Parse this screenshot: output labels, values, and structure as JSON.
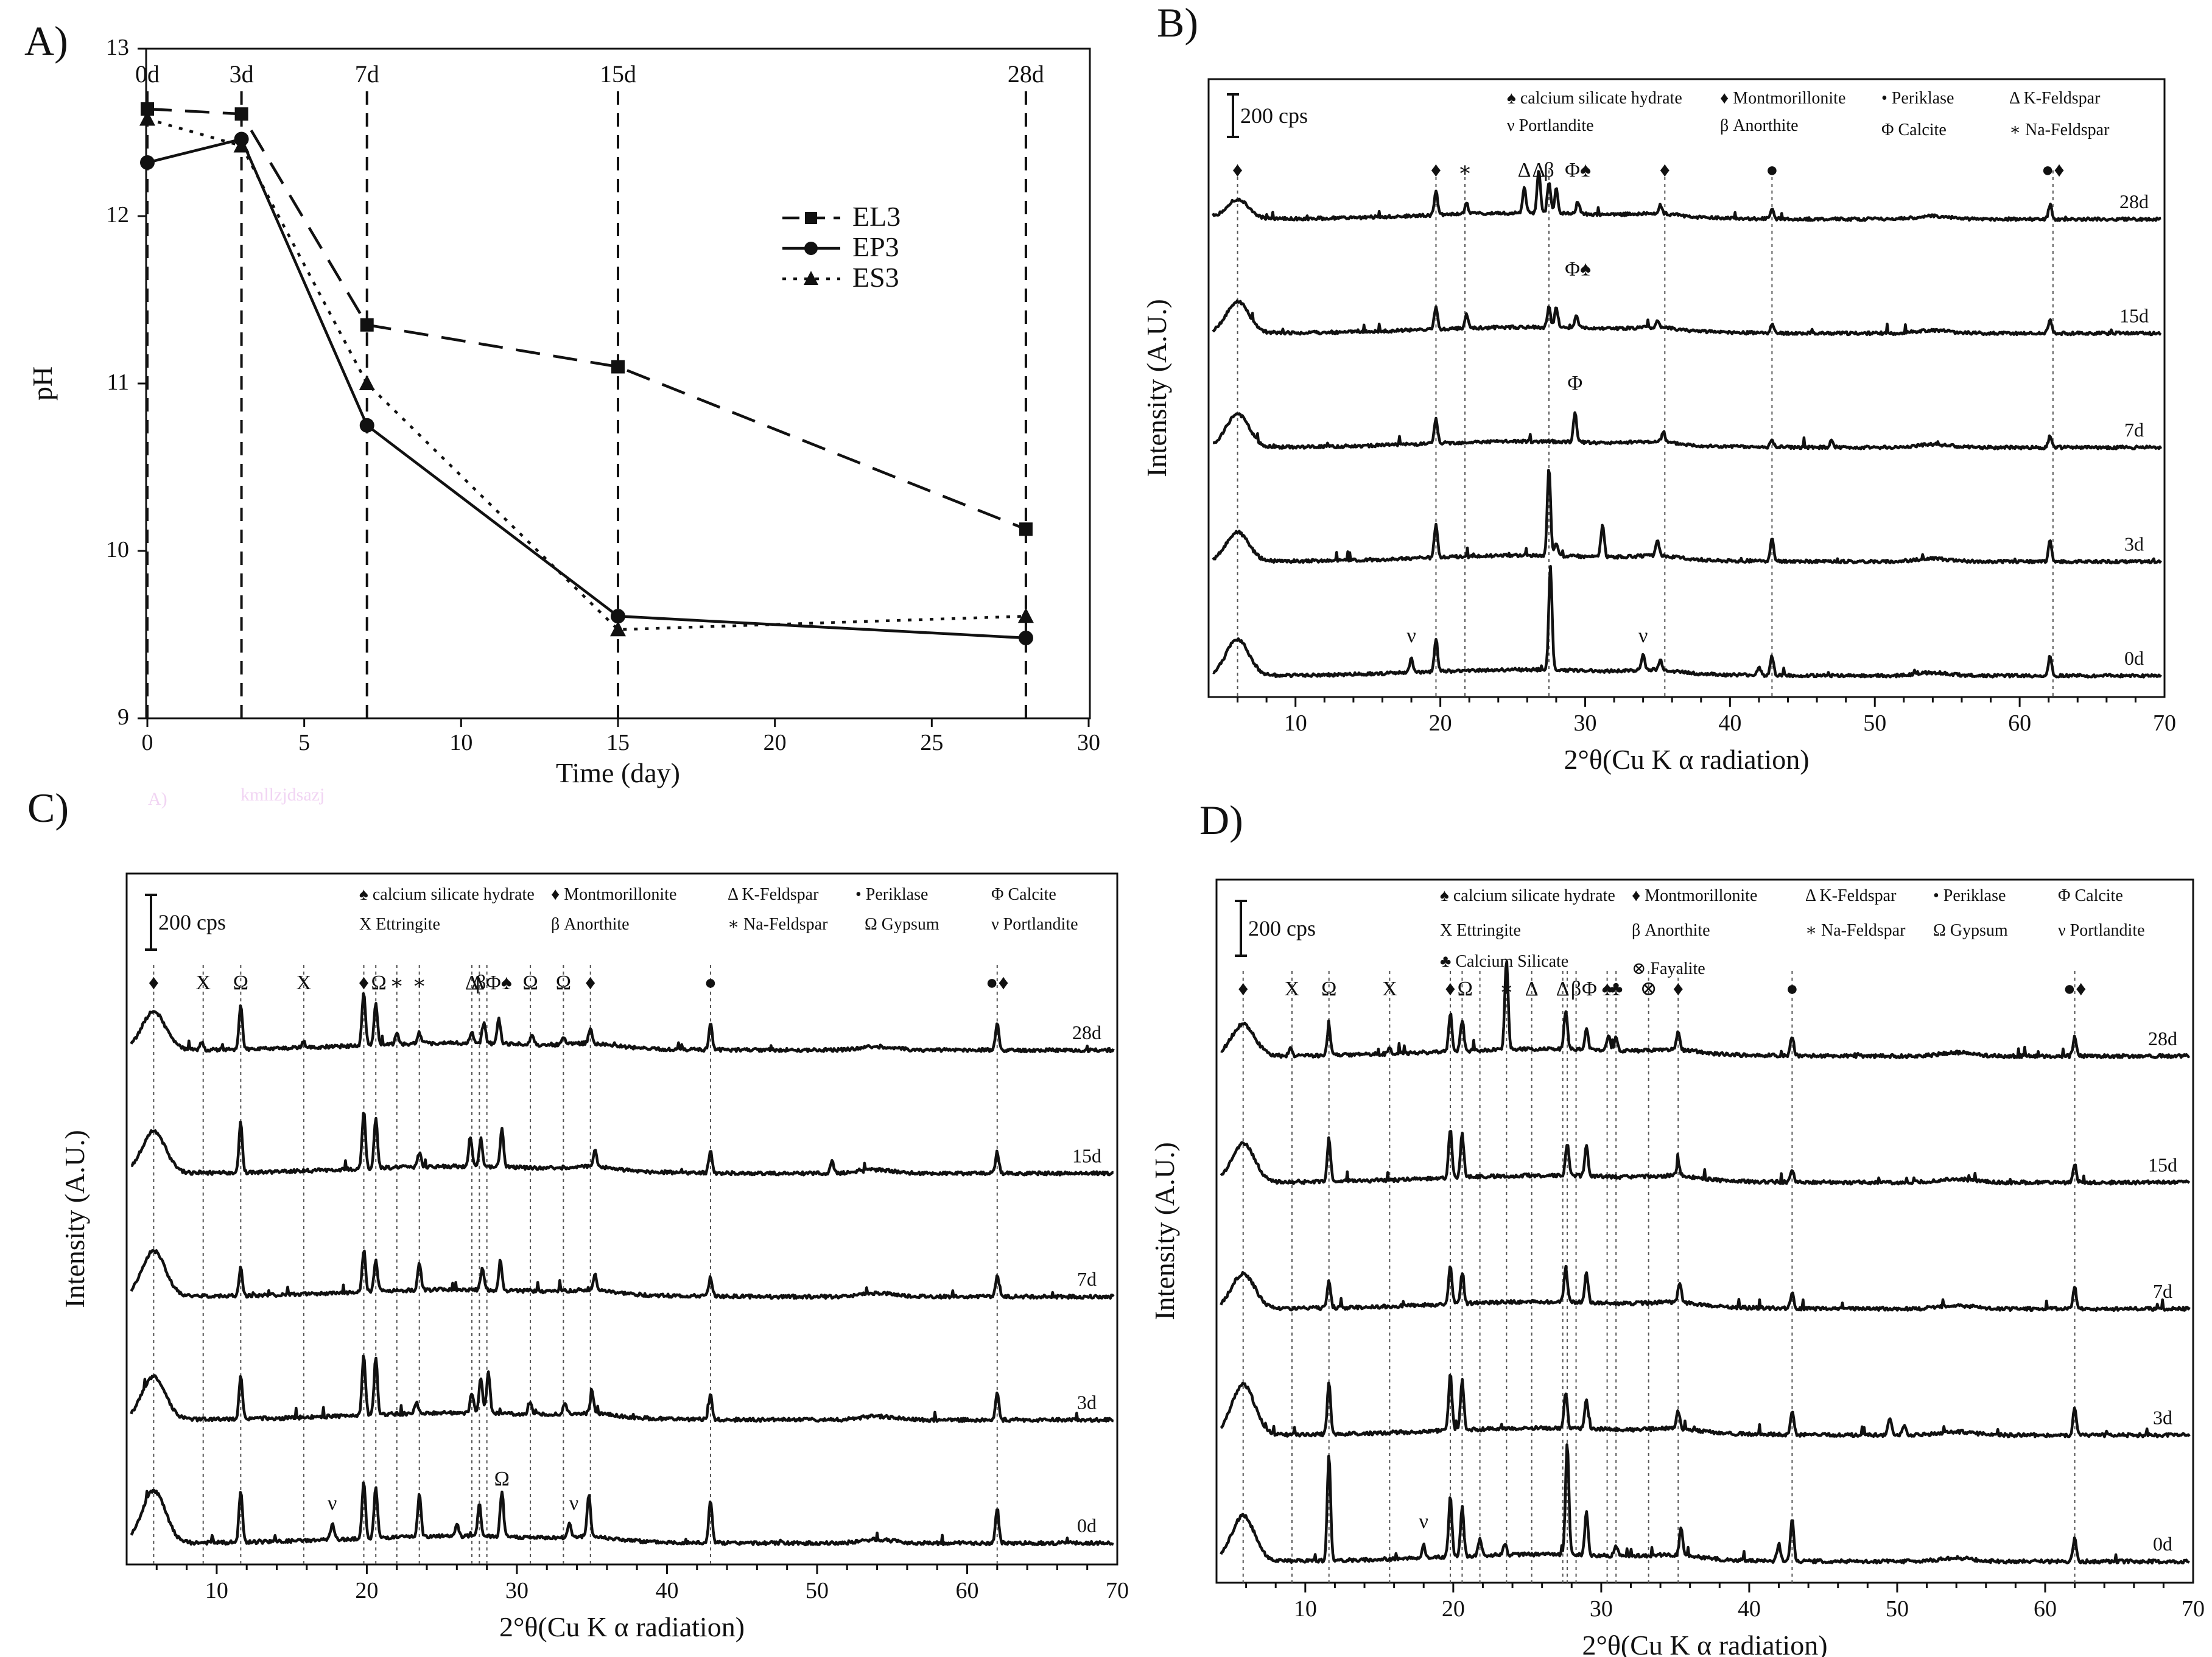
{
  "chart_data": [
    {
      "panel": "A)",
      "type": "line",
      "xlabel": "Time (day)",
      "ylabel": "pH",
      "xlim": [
        0,
        30
      ],
      "ylim": [
        9,
        13
      ],
      "xticks": [
        0,
        5,
        10,
        15,
        20,
        25,
        30
      ],
      "yticks": [
        9,
        10,
        11,
        12,
        13
      ],
      "day_markers": [
        {
          "x": 0,
          "label": "0d"
        },
        {
          "x": 3,
          "label": "3d"
        },
        {
          "x": 7,
          "label": "7d"
        },
        {
          "x": 15,
          "label": "15d"
        },
        {
          "x": 28,
          "label": "28d"
        }
      ],
      "x": [
        0,
        3,
        7,
        15,
        28
      ],
      "series": [
        {
          "name": "EL3",
          "marker": "square",
          "style": "dashed",
          "values": [
            12.64,
            12.61,
            11.35,
            11.1,
            10.13
          ]
        },
        {
          "name": "EP3",
          "marker": "circle",
          "style": "solid",
          "values": [
            12.32,
            12.46,
            10.75,
            9.61,
            9.48
          ]
        },
        {
          "name": "ES3",
          "marker": "triangle",
          "style": "dotted",
          "values": [
            12.58,
            12.42,
            11.0,
            9.53,
            9.61
          ]
        }
      ],
      "watermark_text": [
        "A)",
        "kmllzjdsazj"
      ]
    },
    {
      "panel": "B)",
      "type": "xrd_patterns",
      "xlabel": "2°θ(Cu K α radiation)",
      "ylabel": "Intensity (A.U.)",
      "xlim": [
        4,
        70
      ],
      "xticks": [
        10,
        20,
        30,
        40,
        50,
        60,
        70
      ],
      "scale_bar": "200 cps",
      "legend": [
        "♠ calcium silicate hydrate",
        "♦ Montmorillonite",
        "• Periklase",
        "Δ K-Feldspar",
        "ν Portlandite",
        "β Anorthite",
        "Φ Calcite",
        "∗ Na-Feldspar"
      ],
      "patterns": [
        {
          "label": "28d",
          "peaks": [
            [
              6.0,
              32
            ],
            [
              19.7,
              40
            ],
            [
              21.8,
              18
            ],
            [
              25.8,
              42
            ],
            [
              26.8,
              70
            ],
            [
              27.5,
              52
            ],
            [
              28.0,
              40
            ],
            [
              29.5,
              20
            ],
            [
              35.2,
              14
            ],
            [
              42.9,
              18
            ],
            [
              62.1,
              24
            ]
          ]
        },
        {
          "label": "15d",
          "peaks": [
            [
              6.0,
              52
            ],
            [
              19.7,
              38
            ],
            [
              21.8,
              22
            ],
            [
              27.5,
              34
            ],
            [
              28.0,
              34
            ],
            [
              29.4,
              20
            ],
            [
              35.0,
              12
            ],
            [
              42.9,
              14
            ],
            [
              62.1,
              22
            ]
          ]
        },
        {
          "label": "7d",
          "peaks": [
            [
              6.0,
              55
            ],
            [
              19.7,
              40
            ],
            [
              29.3,
              48
            ],
            [
              35.4,
              18
            ],
            [
              42.9,
              10
            ],
            [
              47.0,
              10
            ],
            [
              62.1,
              20
            ]
          ]
        },
        {
          "label": "3d",
          "peaks": [
            [
              6.0,
              48
            ],
            [
              19.7,
              55
            ],
            [
              27.5,
              145
            ],
            [
              28.0,
              22
            ],
            [
              31.2,
              52
            ],
            [
              35.0,
              26
            ],
            [
              42.9,
              36
            ],
            [
              62.1,
              35
            ]
          ]
        },
        {
          "label": "0d",
          "peaks": [
            [
              6.0,
              60
            ],
            [
              18.0,
              22
            ],
            [
              19.7,
              55
            ],
            [
              27.6,
              170
            ],
            [
              34.0,
              25
            ],
            [
              35.2,
              16
            ],
            [
              42.0,
              14
            ],
            [
              42.9,
              32
            ],
            [
              62.1,
              33
            ]
          ]
        }
      ],
      "ref_lines": [
        6.0,
        19.7,
        21.7,
        27.5,
        35.5,
        42.9,
        62.3
      ],
      "annotations": [
        {
          "x": 6.0,
          "symbol": "♦"
        },
        {
          "x": 19.7,
          "symbol": "♦"
        },
        {
          "x": 21.7,
          "symbol": "∗"
        },
        {
          "x": 25.8,
          "symbol": "Δ"
        },
        {
          "x": 26.8,
          "symbol": "Δ"
        },
        {
          "x": 27.5,
          "symbol": "β"
        },
        {
          "x": 29.5,
          "symbol": "Φ♠"
        },
        {
          "x": 35.5,
          "symbol": "♦"
        },
        {
          "x": 42.9,
          "symbol": "●"
        },
        {
          "x": 62.3,
          "symbol": "●♦"
        },
        {
          "x": 29.5,
          "symbol": "Φ♠",
          "pattern": "15d"
        },
        {
          "x": 29.3,
          "symbol": "Φ",
          "pattern": "7d"
        },
        {
          "x": 18.0,
          "symbol": "ν",
          "pattern": "0d"
        },
        {
          "x": 34.0,
          "symbol": "ν",
          "pattern": "0d"
        }
      ]
    },
    {
      "panel": "C)",
      "type": "xrd_patterns",
      "xlabel": "2°θ(Cu K α radiation)",
      "ylabel": "Intensity (A.U.)",
      "xlim": [
        4,
        70
      ],
      "xticks": [
        10,
        20,
        30,
        40,
        50,
        60,
        70
      ],
      "scale_bar": "200 cps",
      "legend": [
        "♠ calcium silicate hydrate",
        "♦ Montmorillonite",
        "Δ K-Feldspar",
        "• Periklase",
        "Φ Calcite",
        "X Ettringite",
        "β Anorthite",
        "∗ Na-Feldspar",
        "Ω Gypsum",
        "ν Portlandite"
      ],
      "patterns": [
        {
          "label": "28d",
          "peaks": [
            [
              5.8,
              55
            ],
            [
              9.0,
              10
            ],
            [
              11.6,
              65
            ],
            [
              15.8,
              8
            ],
            [
              19.8,
              75
            ],
            [
              20.6,
              60
            ],
            [
              22.0,
              15
            ],
            [
              23.5,
              15
            ],
            [
              27.0,
              15
            ],
            [
              27.8,
              30
            ],
            [
              28.8,
              35
            ],
            [
              31.0,
              12
            ],
            [
              33.1,
              10
            ],
            [
              34.9,
              22
            ],
            [
              42.9,
              38
            ],
            [
              62.0,
              38
            ]
          ]
        },
        {
          "label": "15d",
          "peaks": [
            [
              5.8,
              60
            ],
            [
              11.6,
              72
            ],
            [
              19.8,
              80
            ],
            [
              20.6,
              70
            ],
            [
              23.5,
              20
            ],
            [
              26.9,
              42
            ],
            [
              27.6,
              40
            ],
            [
              29.0,
              55
            ],
            [
              35.2,
              25
            ],
            [
              42.9,
              32
            ],
            [
              51.0,
              16
            ],
            [
              62.0,
              30
            ]
          ]
        },
        {
          "label": "7d",
          "peaks": [
            [
              5.8,
              65
            ],
            [
              11.6,
              40
            ],
            [
              19.8,
              60
            ],
            [
              20.6,
              45
            ],
            [
              23.5,
              38
            ],
            [
              27.7,
              30
            ],
            [
              28.9,
              42
            ],
            [
              35.2,
              22
            ],
            [
              42.9,
              28
            ],
            [
              62.0,
              30
            ]
          ]
        },
        {
          "label": "3d",
          "peaks": [
            [
              5.8,
              62
            ],
            [
              11.6,
              60
            ],
            [
              19.8,
              85
            ],
            [
              20.6,
              82
            ],
            [
              23.3,
              16
            ],
            [
              27.0,
              30
            ],
            [
              27.6,
              50
            ],
            [
              28.1,
              60
            ],
            [
              30.9,
              18
            ],
            [
              33.2,
              16
            ],
            [
              35.0,
              30
            ],
            [
              42.9,
              36
            ],
            [
              62.0,
              40
            ]
          ]
        },
        {
          "label": "0d",
          "peaks": [
            [
              5.8,
              75
            ],
            [
              11.6,
              75
            ],
            [
              17.7,
              22
            ],
            [
              19.8,
              80
            ],
            [
              20.6,
              72
            ],
            [
              23.5,
              60
            ],
            [
              26.0,
              18
            ],
            [
              27.5,
              45
            ],
            [
              29.0,
              65
            ],
            [
              33.5,
              20
            ],
            [
              34.8,
              60
            ],
            [
              42.9,
              62
            ],
            [
              62.0,
              50
            ]
          ]
        }
      ],
      "ref_lines": [
        5.8,
        9.1,
        11.6,
        15.8,
        19.8,
        20.6,
        22.0,
        23.5,
        27.0,
        27.5,
        28.0,
        30.9,
        33.1,
        34.9,
        42.9,
        62.0
      ],
      "annotations": [
        {
          "x": 5.8,
          "symbol": "♦"
        },
        {
          "x": 9.1,
          "symbol": "X"
        },
        {
          "x": 11.6,
          "symbol": "Ω"
        },
        {
          "x": 15.8,
          "symbol": "X"
        },
        {
          "x": 19.8,
          "symbol": "♦"
        },
        {
          "x": 20.8,
          "symbol": "Ω"
        },
        {
          "x": 22.0,
          "symbol": "∗"
        },
        {
          "x": 23.5,
          "symbol": "∗"
        },
        {
          "x": 27.0,
          "symbol": "Δ"
        },
        {
          "x": 27.6,
          "symbol": "β"
        },
        {
          "x": 27.4,
          "symbol": "Δ"
        },
        {
          "x": 28.8,
          "symbol": "Φ♠"
        },
        {
          "x": 30.9,
          "symbol": "Ω"
        },
        {
          "x": 33.1,
          "symbol": "Ω"
        },
        {
          "x": 34.9,
          "symbol": "♦"
        },
        {
          "x": 42.9,
          "symbol": "●"
        },
        {
          "x": 62.0,
          "symbol": "●♦"
        },
        {
          "x": 29.0,
          "symbol": "Ω",
          "pattern": "0d"
        },
        {
          "x": 17.7,
          "symbol": "ν",
          "pattern": "0d"
        },
        {
          "x": 33.8,
          "symbol": "ν",
          "pattern": "0d"
        }
      ]
    },
    {
      "panel": "D)",
      "type": "xrd_patterns",
      "xlabel": "2°θ(Cu K α radiation)",
      "ylabel": "Intensity (A.U.)",
      "xlim": [
        4,
        70
      ],
      "xticks": [
        10,
        20,
        30,
        40,
        50,
        60,
        70
      ],
      "scale_bar": "200 cps",
      "legend": [
        "♠ calcium silicate hydrate",
        "♦ Montmorillonite",
        "Δ K-Feldspar",
        "• Periklase",
        "Φ Calcite",
        "X Ettringite",
        "β Anorthite",
        "∗ Na-Feldspar",
        "Ω Gypsum",
        "ν Portlandite",
        "♣ Calcium Silicate",
        "⊗ Fayalite"
      ],
      "patterns": [
        {
          "label": "28d",
          "peaks": [
            [
              5.8,
              45
            ],
            [
              9.0,
              10
            ],
            [
              11.6,
              40
            ],
            [
              15.7,
              8
            ],
            [
              19.8,
              55
            ],
            [
              20.6,
              45
            ],
            [
              23.6,
              130
            ],
            [
              27.6,
              55
            ],
            [
              29.0,
              30
            ],
            [
              30.5,
              22
            ],
            [
              31.0,
              18
            ],
            [
              35.2,
              25
            ],
            [
              42.9,
              28
            ],
            [
              62.0,
              28
            ]
          ]
        },
        {
          "label": "15d",
          "peaks": [
            [
              5.8,
              55
            ],
            [
              11.6,
              62
            ],
            [
              19.8,
              70
            ],
            [
              20.6,
              62
            ],
            [
              27.7,
              45
            ],
            [
              29.0,
              42
            ],
            [
              35.2,
              18
            ],
            [
              42.9,
              18
            ],
            [
              62.0,
              25
            ]
          ]
        },
        {
          "label": "7d",
          "peaks": [
            [
              5.8,
              50
            ],
            [
              11.6,
              40
            ],
            [
              19.8,
              55
            ],
            [
              20.6,
              45
            ],
            [
              27.6,
              50
            ],
            [
              29.0,
              42
            ],
            [
              35.3,
              28
            ],
            [
              42.9,
              22
            ],
            [
              62.0,
              30
            ]
          ]
        },
        {
          "label": "3d",
          "peaks": [
            [
              5.8,
              72
            ],
            [
              11.6,
              75
            ],
            [
              19.8,
              80
            ],
            [
              20.6,
              70
            ],
            [
              27.6,
              50
            ],
            [
              29.0,
              42
            ],
            [
              35.2,
              25
            ],
            [
              42.9,
              35
            ],
            [
              49.5,
              25
            ],
            [
              50.5,
              15
            ],
            [
              62.0,
              40
            ]
          ]
        },
        {
          "label": "0d",
          "peaks": [
            [
              5.8,
              65
            ],
            [
              11.6,
              150
            ],
            [
              18.0,
              18
            ],
            [
              19.8,
              85
            ],
            [
              20.6,
              70
            ],
            [
              21.8,
              25
            ],
            [
              23.5,
              15
            ],
            [
              27.7,
              160
            ],
            [
              29.0,
              60
            ],
            [
              31.0,
              15
            ],
            [
              35.4,
              38
            ],
            [
              42.0,
              25
            ],
            [
              42.9,
              60
            ],
            [
              62.0,
              35
            ]
          ]
        }
      ],
      "ref_lines": [
        5.8,
        9.1,
        11.6,
        15.7,
        19.8,
        20.6,
        21.8,
        23.6,
        25.3,
        27.4,
        27.7,
        28.3,
        30.4,
        31.0,
        33.2,
        35.2,
        42.9,
        62.0
      ],
      "annotations": [
        {
          "x": 5.8,
          "symbol": "♦"
        },
        {
          "x": 9.1,
          "symbol": "X"
        },
        {
          "x": 11.6,
          "symbol": "Ω"
        },
        {
          "x": 15.7,
          "symbol": "X"
        },
        {
          "x": 19.8,
          "symbol": "♦"
        },
        {
          "x": 20.8,
          "symbol": "Ω"
        },
        {
          "x": 23.6,
          "symbol": "∗"
        },
        {
          "x": 25.3,
          "symbol": "Δ"
        },
        {
          "x": 27.4,
          "symbol": "Δ"
        },
        {
          "x": 28.3,
          "symbol": "β"
        },
        {
          "x": 29.2,
          "symbol": "Φ"
        },
        {
          "x": 30.4,
          "symbol": "♠"
        },
        {
          "x": 31.0,
          "symbol": "♣"
        },
        {
          "x": 33.2,
          "symbol": "⊗"
        },
        {
          "x": 35.2,
          "symbol": "♦"
        },
        {
          "x": 42.9,
          "symbol": "●"
        },
        {
          "x": 62.0,
          "symbol": "●♦"
        },
        {
          "x": 18.0,
          "symbol": "ν",
          "pattern": "0d"
        }
      ]
    }
  ]
}
